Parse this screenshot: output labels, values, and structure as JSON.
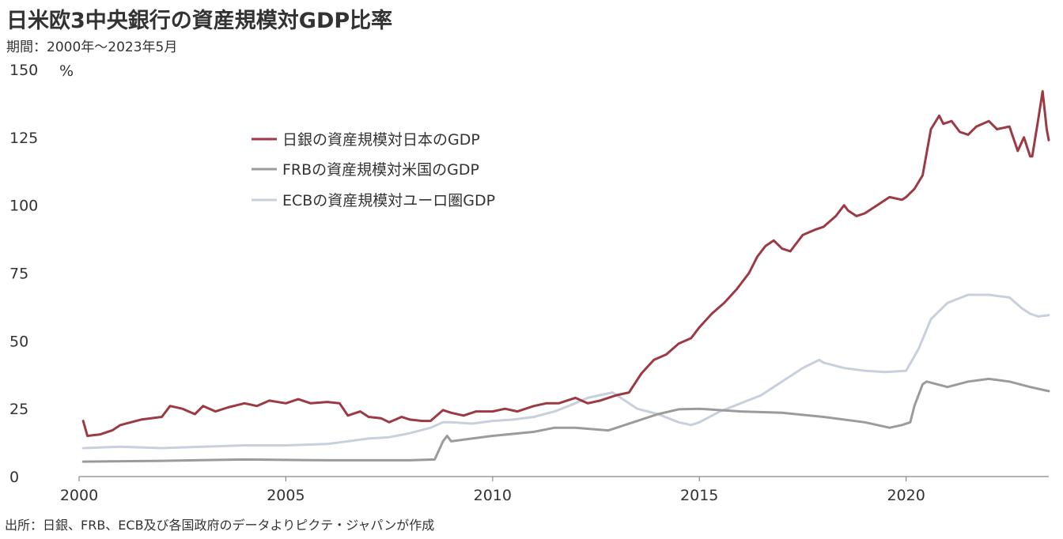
{
  "title": "日米欧3中央銀行の資産規模対GDP比率",
  "subtitle": "期間：2000年～2023年5月",
  "source": "出所：日銀、FRB、ECB及び各国政府のデータよりピクテ・ジャパンが作成",
  "chart_data": {
    "type": "line",
    "ylabel": "%",
    "ylim": [
      0,
      150
    ],
    "yticks": [
      0,
      25,
      50,
      75,
      100,
      125,
      150
    ],
    "xlim": [
      2000,
      2023.45
    ],
    "xticks": [
      2000,
      2005,
      2010,
      2015,
      2020
    ],
    "grid": false,
    "legend": "top-left",
    "series": [
      {
        "name": "日銀の資産規模対日本のGDP",
        "color": "#9c3a44",
        "points": [
          [
            2000.1,
            20.5
          ],
          [
            2000.2,
            15
          ],
          [
            2000.5,
            15.5
          ],
          [
            2000.8,
            17
          ],
          [
            2001.0,
            19
          ],
          [
            2001.5,
            21
          ],
          [
            2002.0,
            22
          ],
          [
            2002.2,
            26
          ],
          [
            2002.5,
            25
          ],
          [
            2002.8,
            23
          ],
          [
            2003.0,
            26
          ],
          [
            2003.3,
            24
          ],
          [
            2003.6,
            25.5
          ],
          [
            2004.0,
            27
          ],
          [
            2004.3,
            26
          ],
          [
            2004.6,
            28
          ],
          [
            2005.0,
            27
          ],
          [
            2005.3,
            28.5
          ],
          [
            2005.6,
            27
          ],
          [
            2006.0,
            27.5
          ],
          [
            2006.3,
            27
          ],
          [
            2006.5,
            22.5
          ],
          [
            2006.8,
            24
          ],
          [
            2007.0,
            22
          ],
          [
            2007.3,
            21.5
          ],
          [
            2007.5,
            20
          ],
          [
            2007.8,
            22
          ],
          [
            2008.0,
            21
          ],
          [
            2008.3,
            20.5
          ],
          [
            2008.5,
            20.5
          ],
          [
            2008.8,
            24.5
          ],
          [
            2009.0,
            23.5
          ],
          [
            2009.3,
            22.5
          ],
          [
            2009.6,
            24
          ],
          [
            2010.0,
            24
          ],
          [
            2010.3,
            25
          ],
          [
            2010.6,
            24
          ],
          [
            2011.0,
            26
          ],
          [
            2011.3,
            27
          ],
          [
            2011.6,
            27
          ],
          [
            2012.0,
            29
          ],
          [
            2012.3,
            27
          ],
          [
            2012.6,
            28
          ],
          [
            2012.9,
            29.5
          ],
          [
            2013.0,
            30
          ],
          [
            2013.3,
            31
          ],
          [
            2013.6,
            38
          ],
          [
            2013.9,
            43
          ],
          [
            2014.2,
            45
          ],
          [
            2014.5,
            49
          ],
          [
            2014.8,
            51
          ],
          [
            2015.0,
            55
          ],
          [
            2015.3,
            60
          ],
          [
            2015.6,
            64
          ],
          [
            2015.9,
            69
          ],
          [
            2016.2,
            75
          ],
          [
            2016.4,
            81
          ],
          [
            2016.6,
            85
          ],
          [
            2016.8,
            87
          ],
          [
            2017.0,
            84
          ],
          [
            2017.2,
            83
          ],
          [
            2017.5,
            89
          ],
          [
            2017.8,
            91
          ],
          [
            2018.0,
            92
          ],
          [
            2018.3,
            96
          ],
          [
            2018.5,
            100
          ],
          [
            2018.6,
            98
          ],
          [
            2018.8,
            96
          ],
          [
            2019.0,
            97
          ],
          [
            2019.3,
            100
          ],
          [
            2019.6,
            103
          ],
          [
            2019.9,
            102
          ],
          [
            2020.0,
            103
          ],
          [
            2020.2,
            106
          ],
          [
            2020.4,
            111
          ],
          [
            2020.6,
            128
          ],
          [
            2020.8,
            133
          ],
          [
            2020.9,
            130
          ],
          [
            2021.1,
            131
          ],
          [
            2021.3,
            127
          ],
          [
            2021.5,
            126
          ],
          [
            2021.7,
            129
          ],
          [
            2022.0,
            131
          ],
          [
            2022.2,
            128
          ],
          [
            2022.5,
            129
          ],
          [
            2022.7,
            120
          ],
          [
            2022.85,
            125
          ],
          [
            2023.0,
            118
          ],
          [
            2023.05,
            118
          ],
          [
            2023.2,
            132
          ],
          [
            2023.3,
            142
          ],
          [
            2023.4,
            128
          ],
          [
            2023.45,
            124
          ]
        ]
      },
      {
        "name": "FRBの資産規模対米国のGDP",
        "color": "#9b9b9b",
        "points": [
          [
            2000.1,
            5.5
          ],
          [
            2002.0,
            5.8
          ],
          [
            2004.0,
            6.3
          ],
          [
            2006.0,
            6
          ],
          [
            2008.0,
            6
          ],
          [
            2008.6,
            6.3
          ],
          [
            2008.8,
            13
          ],
          [
            2008.9,
            15
          ],
          [
            2009.0,
            13
          ],
          [
            2009.5,
            14
          ],
          [
            2010.0,
            15
          ],
          [
            2011.0,
            16.5
          ],
          [
            2011.5,
            18
          ],
          [
            2012.0,
            18
          ],
          [
            2012.8,
            17
          ],
          [
            2013.0,
            18
          ],
          [
            2013.5,
            20.5
          ],
          [
            2014.0,
            23
          ],
          [
            2014.5,
            24.8
          ],
          [
            2015.0,
            25
          ],
          [
            2016.0,
            24
          ],
          [
            2017.0,
            23.5
          ],
          [
            2018.0,
            22
          ],
          [
            2019.0,
            20
          ],
          [
            2019.6,
            18
          ],
          [
            2019.9,
            19
          ],
          [
            2020.1,
            20
          ],
          [
            2020.2,
            26
          ],
          [
            2020.4,
            34
          ],
          [
            2020.5,
            35
          ],
          [
            2021.0,
            33
          ],
          [
            2021.5,
            35
          ],
          [
            2022.0,
            36
          ],
          [
            2022.5,
            35
          ],
          [
            2023.0,
            33
          ],
          [
            2023.45,
            31.5
          ]
        ]
      },
      {
        "name": "ECBの資産規模対ユーロ圏GDP",
        "color": "#c7d0dc",
        "points": [
          [
            2000.1,
            10.5
          ],
          [
            2001.0,
            11
          ],
          [
            2002.0,
            10.5
          ],
          [
            2003.0,
            11
          ],
          [
            2004.0,
            11.5
          ],
          [
            2005.0,
            11.5
          ],
          [
            2006.0,
            12
          ],
          [
            2006.5,
            13
          ],
          [
            2007.0,
            14
          ],
          [
            2007.5,
            14.5
          ],
          [
            2008.0,
            16
          ],
          [
            2008.5,
            18
          ],
          [
            2008.8,
            20
          ],
          [
            2009.0,
            20
          ],
          [
            2009.5,
            19.5
          ],
          [
            2010.0,
            20.5
          ],
          [
            2010.5,
            21
          ],
          [
            2011.0,
            22
          ],
          [
            2011.5,
            24
          ],
          [
            2012.0,
            27
          ],
          [
            2012.3,
            29
          ],
          [
            2012.6,
            30
          ],
          [
            2012.9,
            31
          ],
          [
            2013.0,
            30
          ],
          [
            2013.5,
            25
          ],
          [
            2014.0,
            23
          ],
          [
            2014.5,
            20
          ],
          [
            2014.8,
            19
          ],
          [
            2015.0,
            20
          ],
          [
            2015.5,
            24
          ],
          [
            2016.0,
            27
          ],
          [
            2016.5,
            30
          ],
          [
            2017.0,
            35
          ],
          [
            2017.5,
            40
          ],
          [
            2017.9,
            43
          ],
          [
            2018.0,
            42
          ],
          [
            2018.5,
            40
          ],
          [
            2019.0,
            39
          ],
          [
            2019.5,
            38.5
          ],
          [
            2020.0,
            39
          ],
          [
            2020.3,
            47
          ],
          [
            2020.6,
            58
          ],
          [
            2021.0,
            64
          ],
          [
            2021.5,
            67
          ],
          [
            2022.0,
            67
          ],
          [
            2022.5,
            66
          ],
          [
            2022.8,
            62
          ],
          [
            2023.0,
            60
          ],
          [
            2023.2,
            59
          ],
          [
            2023.45,
            59.5
          ]
        ]
      }
    ]
  }
}
